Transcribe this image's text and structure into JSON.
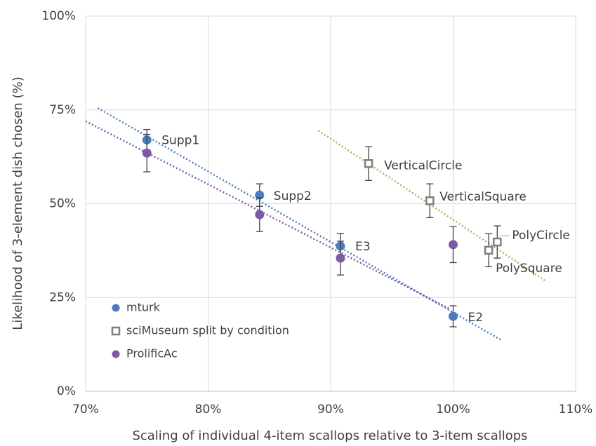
{
  "chart_data": {
    "type": "scatter",
    "x_label": "Scaling of individual 4-item scallops relative to 3-item scallops",
    "y_label": "Likelihood of 3-element dish chosen (%)",
    "xlim": [
      70,
      110
    ],
    "ylim": [
      0,
      100
    ],
    "xticks": [
      {
        "value": 70,
        "label": "70%"
      },
      {
        "value": 80,
        "label": "80%"
      },
      {
        "value": 90,
        "label": "90%"
      },
      {
        "value": 100,
        "label": "100%"
      },
      {
        "value": 110,
        "label": "110%"
      }
    ],
    "yticks": [
      {
        "value": 0,
        "label": "0%"
      },
      {
        "value": 25,
        "label": "25%"
      },
      {
        "value": 50,
        "label": "50%"
      },
      {
        "value": 75,
        "label": "75%"
      },
      {
        "value": 100,
        "label": "100%"
      }
    ],
    "grid": true,
    "legend": "lower left",
    "series": [
      {
        "name": "mturk",
        "color": "#4a7dbf",
        "marker": "circle",
        "x": [
          75,
          84.2,
          90.8,
          100
        ],
        "values": [
          67,
          52.3,
          38.7,
          20
        ],
        "errors": [
          2.8,
          3,
          3.4,
          2.8
        ],
        "labels": [
          "Supp1",
          "Supp2",
          "E3",
          "E2"
        ],
        "trendline": {
          "color": "#4a7dbf",
          "x": [
            71,
            104
          ],
          "y": [
            75.5,
            13.5
          ]
        }
      },
      {
        "name": "sciMuseum split by condition",
        "color": "#7f7f7f",
        "marker": "square",
        "x": [
          93.1,
          98.1,
          103.6,
          102.9
        ],
        "values": [
          60.7,
          50.8,
          39.8,
          37.6
        ],
        "errors": [
          4.5,
          4.5,
          4.3,
          4.4
        ],
        "labels": [
          "VerticalCircle",
          "VerticalSquare",
          "PolyCircle",
          "PolySquare"
        ],
        "trendline": {
          "color": "#9bbb59",
          "x": [
            89,
            107.5
          ],
          "y": [
            69.5,
            29.5
          ]
        }
      },
      {
        "name": "ProlificAc",
        "color": "#7b5aa6",
        "marker": "circle",
        "x": [
          75,
          84.2,
          90.8,
          100
        ],
        "values": [
          63.5,
          47.1,
          35.5,
          39.1
        ],
        "errors": [
          5,
          4.5,
          4.5,
          4.8
        ],
        "trendline": {
          "color": "#7b5aa6",
          "x": [
            70,
            99.7
          ],
          "y": [
            72,
            22
          ]
        }
      }
    ]
  }
}
